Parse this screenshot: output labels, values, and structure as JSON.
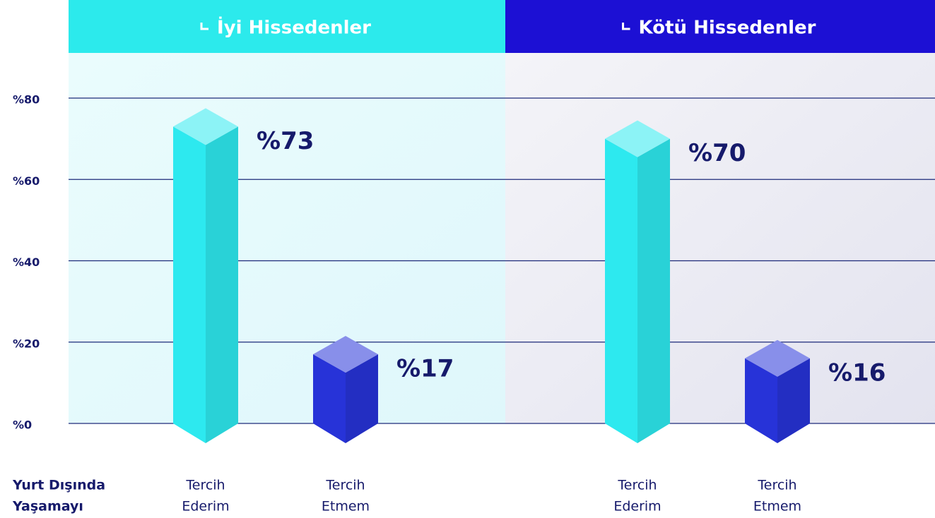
{
  "chart_data": {
    "type": "bar",
    "x_label": [
      "Yurt Dışında",
      "Yaşamayı"
    ],
    "categories": [
      [
        "Tercih",
        "Ederim"
      ],
      [
        "Tercih",
        "Etmem"
      ]
    ],
    "category_colors": [
      "#2de9ef",
      "#2733d8"
    ],
    "series": [
      {
        "name": "İyi Hissedenler",
        "color": "#2ceaec",
        "values": [
          73,
          17
        ],
        "value_labels": [
          "%73",
          "%17"
        ]
      },
      {
        "name": "Kötü Hissedenler",
        "color": "#1c10d4",
        "values": [
          70,
          16
        ],
        "value_labels": [
          "%70",
          "%16"
        ]
      }
    ],
    "ylim": [
      0,
      80
    ],
    "yticks": [
      {
        "value": 0,
        "label": "%0"
      },
      {
        "value": 20,
        "label": "%20"
      },
      {
        "value": 40,
        "label": "%40"
      },
      {
        "value": 60,
        "label": "%60"
      },
      {
        "value": 80,
        "label": "%80"
      }
    ],
    "grid": true
  }
}
